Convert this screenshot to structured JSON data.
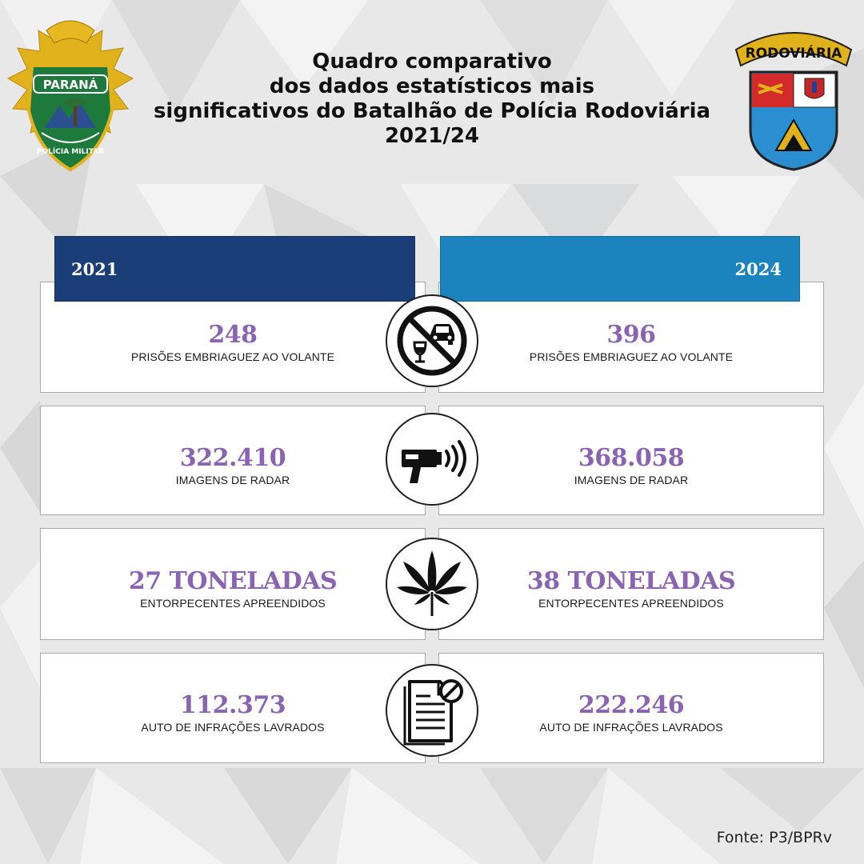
{
  "title": {
    "line1": "Quadro comparativo",
    "line2": "dos dados estatísticos mais",
    "line3": "significativos do Batalhão de Polícia Rodoviária",
    "line4": "2021/24"
  },
  "logos": {
    "left": {
      "name": "policia-militar-parana-badge",
      "text_top": "PARANÁ",
      "text_bottom": "POLÍCIA MILITAR"
    },
    "right": {
      "name": "rodoviaria-shield",
      "text": "RODOVIÁRIA"
    }
  },
  "years": {
    "left": "2021",
    "right": "2024"
  },
  "colors": {
    "year_left": "#1c3e78",
    "year_right": "#1b84bf",
    "value_text": "#8a63b1"
  },
  "rows": [
    {
      "icon": "no-drunk-driving-icon",
      "left": {
        "value": "248",
        "label": "PRISÕES EMBRIAGUEZ AO VOLANTE"
      },
      "right": {
        "value": "396",
        "label": "PRISÕES EMBRIAGUEZ AO VOLANTE"
      }
    },
    {
      "icon": "speed-radar-gun-icon",
      "left": {
        "value": "322.410",
        "label": "IMAGENS DE RADAR"
      },
      "right": {
        "value": "368.058",
        "label": "IMAGENS DE RADAR"
      }
    },
    {
      "icon": "cannabis-leaf-icon",
      "left": {
        "value": "27 TONELADAS",
        "label": "ENTORPECENTES APREENDIDOS"
      },
      "right": {
        "value": "38 TONELADAS",
        "label": "ENTORPECENTES APREENDIDOS"
      }
    },
    {
      "icon": "infraction-document-icon",
      "left": {
        "value": "112.373",
        "label": "AUTO DE INFRAÇÕES LAVRADOS"
      },
      "right": {
        "value": "222.246",
        "label": "AUTO DE INFRAÇÕES LAVRADOS"
      }
    }
  ],
  "source": "Fonte: P3/BPRv"
}
